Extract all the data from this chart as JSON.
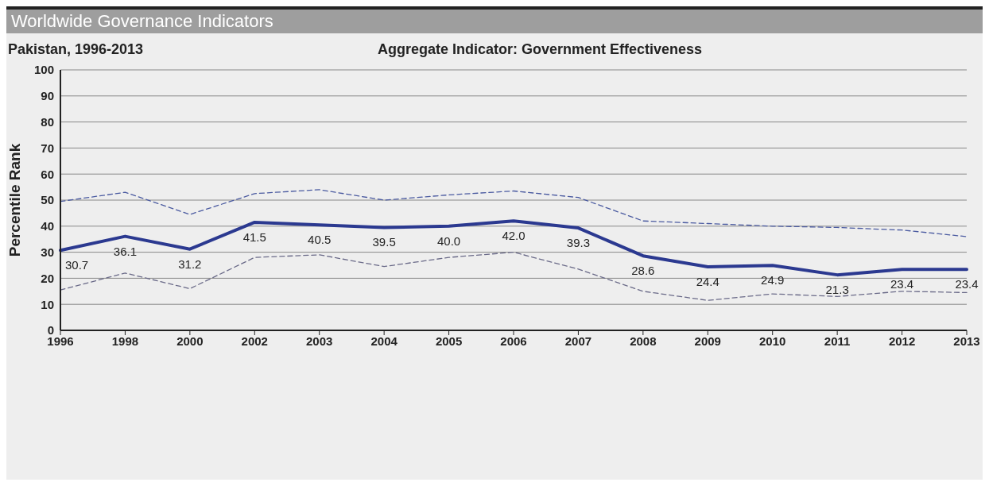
{
  "chart_data": {
    "type": "line",
    "title": "Worldwide Governance Indicators",
    "subtitle": "Pakistan, 1996-2013",
    "annotations": [
      "Aggregate Indicator: Government Effectiveness"
    ],
    "ylabel": "Percentile Rank",
    "categories": [
      "1996",
      "1998",
      "2000",
      "2002",
      "2003",
      "2004",
      "2005",
      "2006",
      "2007",
      "2008",
      "2009",
      "2010",
      "2011",
      "2012",
      "2013"
    ],
    "series": [
      {
        "color": "#2b3990",
        "line_style": "solid",
        "values": [
          30.7,
          36.1,
          31.2,
          41.5,
          40.5,
          39.5,
          40.0,
          42.0,
          39.3,
          28.6,
          24.4,
          24.9,
          21.3,
          23.4,
          23.4
        ],
        "value_labels": [
          "30.7",
          "36.1",
          "31.2",
          "41.5",
          "40.5",
          "39.5",
          "40.0",
          "42.0",
          "39.3",
          "28.6",
          "24.4",
          "24.9",
          "21.3",
          "23.4",
          "23.4"
        ]
      },
      {
        "color": "#4a5aa0",
        "line_style": "dashed",
        "values": [
          49.5,
          53,
          44.5,
          52.5,
          54,
          50,
          52,
          53.5,
          51,
          42,
          41,
          40,
          39.5,
          38.5,
          36
        ]
      },
      {
        "color": "#6a6a88",
        "line_style": "dashed",
        "values": [
          15.5,
          22,
          16,
          28,
          29,
          24.5,
          28,
          30,
          23.5,
          15,
          11.5,
          14,
          13,
          15,
          14.5
        ]
      }
    ],
    "ylim": [
      0,
      100
    ],
    "yticks": [
      0,
      10,
      20,
      30,
      40,
      50,
      60,
      70,
      80,
      90,
      100
    ],
    "grid": "y",
    "legend": false,
    "marker": "none"
  }
}
